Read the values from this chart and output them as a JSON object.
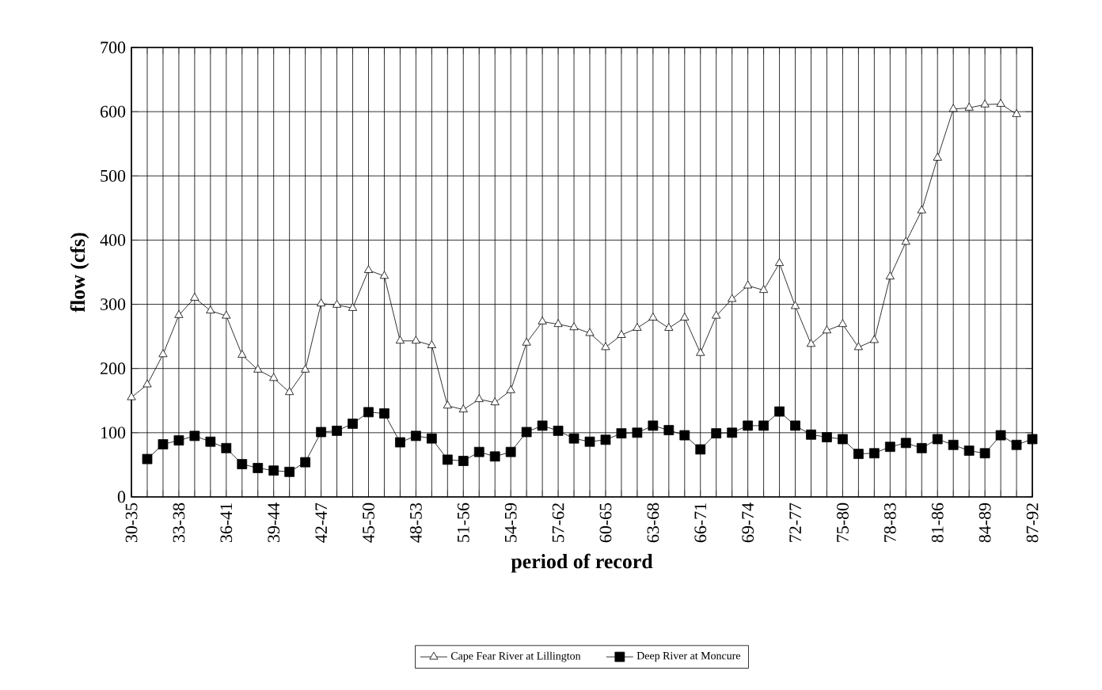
{
  "chart_data": {
    "type": "line",
    "xlabel": "period of record",
    "ylabel": "flow (cfs)",
    "categories": [
      "30-35",
      null,
      null,
      "33-38",
      null,
      null,
      "36-41",
      null,
      null,
      "39-44",
      null,
      null,
      "42-47",
      null,
      null,
      "45-50",
      null,
      null,
      "48-53",
      null,
      null,
      "51-56",
      null,
      null,
      "54-59",
      null,
      null,
      "57-62",
      null,
      null,
      "60-65",
      null,
      null,
      "63-68",
      null,
      null,
      "66-71",
      null,
      null,
      "69-74",
      null,
      null,
      "72-77",
      null,
      null,
      "75-80",
      null,
      null,
      "78-83",
      null,
      null,
      "81-86",
      null,
      null,
      "84-89",
      null,
      null,
      "87-92"
    ],
    "ylim": [
      0,
      700
    ],
    "yticks": [
      0,
      100,
      200,
      300,
      400,
      500,
      600,
      700
    ],
    "grid": true,
    "legend": "bottom",
    "line_style": "solid",
    "series": [
      {
        "name": "Cape Fear River at Lillington",
        "color": "#000000",
        "marker": "triangle",
        "values": [
          155,
          175,
          222,
          283,
          310,
          290,
          282,
          221,
          198,
          185,
          163,
          198,
          301,
          299,
          294,
          353,
          344,
          243,
          243,
          236,
          142,
          136,
          152,
          147,
          166,
          240,
          273,
          269,
          264,
          255,
          233,
          252,
          263,
          279,
          263,
          279,
          224,
          282,
          308,
          329,
          322,
          364,
          297,
          238,
          259,
          269,
          233,
          244,
          343,
          397,
          446,
          528,
          604,
          606,
          611,
          612,
          596,
          null
        ]
      },
      {
        "name": "Deep River at Moncure",
        "color": "#000000",
        "marker": "square",
        "values": [
          null,
          59,
          82,
          88,
          95,
          86,
          76,
          51,
          45,
          41,
          39,
          54,
          101,
          103,
          114,
          132,
          130,
          85,
          95,
          91,
          58,
          56,
          70,
          63,
          70,
          101,
          111,
          103,
          91,
          86,
          89,
          99,
          100,
          111,
          104,
          96,
          74,
          99,
          100,
          111,
          111,
          133,
          111,
          97,
          93,
          90,
          67,
          68,
          78,
          84,
          76,
          90,
          81,
          72,
          68,
          96,
          81,
          90
        ]
      }
    ]
  }
}
